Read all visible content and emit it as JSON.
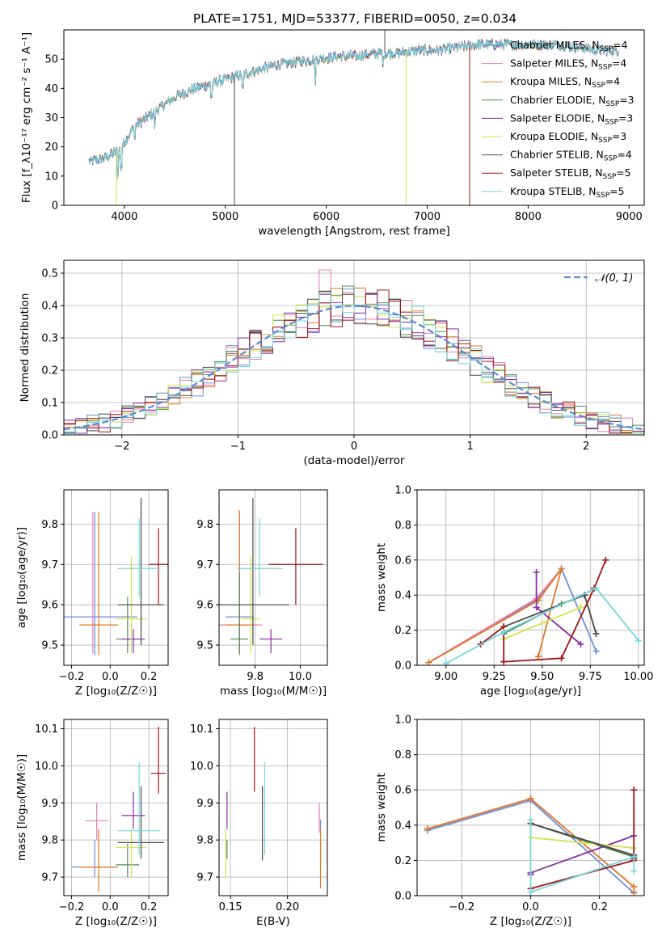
{
  "colors": {
    "chabrier_miles": "#6a8fd8",
    "salpeter_miles": "#e77fb6",
    "kroupa_miles": "#e07a2c",
    "chabrier_elodie": "#4f8a53",
    "salpeter_elodie": "#8c2aa6",
    "kroupa_elodie": "#d0e44a",
    "chabrier_stelib": "#4a4a4a",
    "salpeter_stelib": "#a11414",
    "kroupa_stelib": "#77d6dc",
    "normal": "#5b8ad9"
  },
  "chart_data": [
    {
      "id": "spectrum",
      "type": "line",
      "title": "PLATE=1751, MJD=53377, FIBERID=0050, z=0.034",
      "xlabel": "wavelength [Angstrom, rest frame]",
      "ylabel": "Flux [f_λ10⁻¹⁷ erg cm⁻² s⁻¹ A⁻¹]",
      "xlim": [
        3400,
        9150
      ],
      "ylim": [
        0,
        60
      ],
      "xticks": [
        "4000",
        "5000",
        "6000",
        "7000",
        "8000",
        "9000"
      ],
      "yticks": [
        "0",
        "10",
        "20",
        "30",
        "40",
        "50"
      ],
      "legend": {
        "placement": "upper right",
        "entries": [
          {
            "name": "Chabrier MILES, N",
            "sub": "SSP",
            "tail": "=4",
            "color": "chabrier_miles"
          },
          {
            "name": "Salpeter MILES, N",
            "sub": "SSP",
            "tail": "=4",
            "color": "salpeter_miles"
          },
          {
            "name": "Kroupa MILES, N",
            "sub": "SSP",
            "tail": "=4",
            "color": "kroupa_miles"
          },
          {
            "name": "Chabrier ELODIE, N",
            "sub": "SSP",
            "tail": "=3",
            "color": "chabrier_elodie"
          },
          {
            "name": "Salpeter ELODIE, N",
            "sub": "SSP",
            "tail": "=3",
            "color": "salpeter_elodie"
          },
          {
            "name": "Kroupa ELODIE, N",
            "sub": "SSP",
            "tail": "=3",
            "color": "kroupa_elodie"
          },
          {
            "name": "Chabrier STELIB, N",
            "sub": "SSP",
            "tail": "=4",
            "color": "chabrier_stelib"
          },
          {
            "name": "Salpeter STELIB, N",
            "sub": "SSP",
            "tail": "=5",
            "color": "salpeter_stelib"
          },
          {
            "name": "Kroupa STELIB, N",
            "sub": "SSP",
            "tail": "=5",
            "color": "kroupa_stelib"
          }
        ]
      },
      "continuum": [
        [
          3650,
          15
        ],
        [
          3800,
          16
        ],
        [
          3950,
          19
        ],
        [
          4100,
          27
        ],
        [
          4300,
          32
        ],
        [
          4500,
          37
        ],
        [
          4700,
          40
        ],
        [
          4900,
          42
        ],
        [
          5100,
          44
        ],
        [
          5300,
          46
        ],
        [
          5500,
          48
        ],
        [
          5700,
          49
        ],
        [
          5900,
          50
        ],
        [
          6100,
          51
        ],
        [
          6300,
          51
        ],
        [
          6500,
          52
        ],
        [
          6700,
          52
        ],
        [
          6900,
          53
        ],
        [
          7100,
          53
        ],
        [
          7300,
          54
        ],
        [
          7500,
          55
        ],
        [
          7700,
          55
        ],
        [
          7900,
          55
        ],
        [
          8100,
          55
        ],
        [
          8300,
          55
        ],
        [
          8500,
          54
        ],
        [
          8700,
          53
        ],
        [
          8900,
          53
        ]
      ],
      "features": [
        {
          "series": "chabrier_stelib",
          "x": 5090,
          "y": 0
        },
        {
          "series": "kroupa_elodie",
          "x": 3920,
          "y": 0
        },
        {
          "series": "kroupa_elodie",
          "x": 6790,
          "y": 0
        },
        {
          "series": "salpeter_stelib",
          "x": 7420,
          "y": 0
        },
        {
          "series": "chabrier_stelib",
          "x": 6580,
          "y": 62
        }
      ]
    },
    {
      "id": "residuals",
      "type": "line",
      "xlabel": "(data-model)/error",
      "ylabel": "Normed distribution",
      "xlim": [
        -2.5,
        2.5
      ],
      "ylim": [
        0,
        0.54
      ],
      "xticks": [
        "−2",
        "−1",
        "0",
        "1",
        "2"
      ],
      "yticks": [
        "0.0",
        "0.1",
        "0.2",
        "0.3",
        "0.4",
        "0.5"
      ],
      "legend": {
        "placement": "upper right",
        "entries": [
          {
            "name": "𝒩(0, 1)",
            "color": "normal",
            "style": "dashed"
          }
        ]
      },
      "bin_width": 0.1,
      "note_series": "step histograms for the nine models, approximately following N(0,1)"
    },
    {
      "id": "z_age",
      "type": "scatter",
      "xlabel": "Z [log₁₀(Z/Z☉)]",
      "ylabel": "age  [log₁₀(age/yr)]",
      "xlim": [
        -0.24,
        0.3
      ],
      "ylim": [
        9.45,
        9.885
      ],
      "xticks": [
        "−0.2",
        "0.0",
        "0.2"
      ],
      "yticks": [
        "9.5",
        "9.6",
        "9.7",
        "9.8"
      ],
      "points": [
        {
          "s": "chabrier_miles",
          "x": -0.08,
          "y": 9.57,
          "xerr": 0.22,
          "ylo": 9.475,
          "yhi": 9.83
        },
        {
          "s": "salpeter_miles",
          "x": -0.09,
          "y": 9.55,
          "xerr": 0.03,
          "ylo": 9.48,
          "yhi": 9.83
        },
        {
          "s": "kroupa_miles",
          "x": -0.06,
          "y": 9.55,
          "xerr": 0.1,
          "ylo": 9.475,
          "yhi": 9.83
        },
        {
          "s": "chabrier_elodie",
          "x": 0.09,
          "y": 9.515,
          "xerr": 0.06,
          "ylo": 9.48,
          "yhi": 9.62
        },
        {
          "s": "salpeter_elodie",
          "x": 0.12,
          "y": 9.515,
          "xerr": 0.06,
          "ylo": 9.48,
          "yhi": 9.54
        },
        {
          "s": "kroupa_elodie",
          "x": 0.11,
          "y": 9.565,
          "xerr": 0.08,
          "ylo": 9.48,
          "yhi": 9.72
        },
        {
          "s": "chabrier_stelib",
          "x": 0.16,
          "y": 9.6,
          "xerr": 0.12,
          "ylo": 9.5,
          "yhi": 9.865
        },
        {
          "s": "salpeter_stelib",
          "x": 0.25,
          "y": 9.7,
          "xerr": 0.05,
          "ylo": 9.6,
          "yhi": 9.79
        },
        {
          "s": "kroupa_stelib",
          "x": 0.15,
          "y": 9.69,
          "xerr": 0.11,
          "ylo": 9.62,
          "yhi": 9.815
        }
      ]
    },
    {
      "id": "mass_age",
      "type": "scatter",
      "xlabel": "mass [log₁₀(M/M☉)]",
      "ylabel": "",
      "xlim": [
        9.64,
        10.12
      ],
      "ylim": [
        9.45,
        9.885
      ],
      "xticks": [
        "9.8",
        "10.0"
      ],
      "yticks": [
        "9.5",
        "9.6",
        "9.7",
        "9.8"
      ],
      "points": [
        {
          "s": "chabrier_miles",
          "x": 9.73,
          "y": 9.57,
          "xerr": 0.06,
          "ylo": 9.475,
          "yhi": 9.83
        },
        {
          "s": "salpeter_miles",
          "x": 9.73,
          "y": 9.55,
          "xerr": 0.1,
          "ylo": 9.48,
          "yhi": 9.83
        },
        {
          "s": "kroupa_miles",
          "x": 9.73,
          "y": 9.55,
          "xerr": 0.06,
          "ylo": 9.475,
          "yhi": 9.835
        },
        {
          "s": "chabrier_elodie",
          "x": 9.73,
          "y": 9.515,
          "xerr": 0.04,
          "ylo": 9.48,
          "yhi": 9.68
        },
        {
          "s": "salpeter_elodie",
          "x": 9.87,
          "y": 9.515,
          "xerr": 0.05,
          "ylo": 9.48,
          "yhi": 9.54
        },
        {
          "s": "kroupa_elodie",
          "x": 9.78,
          "y": 9.565,
          "xerr": 0.04,
          "ylo": 9.48,
          "yhi": 9.72
        },
        {
          "s": "chabrier_stelib",
          "x": 9.79,
          "y": 9.6,
          "xerr": 0.16,
          "ylo": 9.5,
          "yhi": 9.865
        },
        {
          "s": "salpeter_stelib",
          "x": 9.98,
          "y": 9.7,
          "xerr": 0.12,
          "ylo": 9.6,
          "yhi": 9.79
        },
        {
          "s": "kroupa_stelib",
          "x": 9.82,
          "y": 9.69,
          "xerr": 0.1,
          "ylo": 9.62,
          "yhi": 9.815
        }
      ]
    },
    {
      "id": "age_weight",
      "type": "line",
      "xlabel": "age  [log₁₀(age/yr)]",
      "ylabel": "mass weight",
      "xlim": [
        8.85,
        10.03
      ],
      "ylim": [
        0,
        1
      ],
      "xticks": [
        "9.00",
        "9.25",
        "9.50",
        "9.75",
        "10.00"
      ],
      "yticks": [
        "0.0",
        "0.2",
        "0.4",
        "0.6",
        "0.8",
        "1.0"
      ],
      "series": [
        {
          "s": "chabrier_miles",
          "x": [
            8.91,
            9.47,
            9.6,
            9.78
          ],
          "y": [
            0.015,
            0.37,
            0.55,
            0.08
          ]
        },
        {
          "s": "salpeter_miles",
          "x": [
            8.91,
            9.47,
            9.6
          ],
          "y": [
            0.015,
            0.38,
            0.55
          ]
        },
        {
          "s": "kroupa_miles",
          "x": [
            8.91,
            9.48,
            9.6,
            9.48,
            9.48
          ],
          "y": [
            0.015,
            0.37,
            0.55,
            0.05,
            0.05
          ]
        },
        {
          "s": "chabrier_elodie",
          "x": [
            9.3,
            9.6,
            9.72
          ],
          "y": [
            0.18,
            0.35,
            0.4
          ]
        },
        {
          "s": "salpeter_elodie",
          "x": [
            9.47,
            9.47,
            9.7
          ],
          "y": [
            0.53,
            0.33,
            0.12
          ]
        },
        {
          "s": "kroupa_elodie",
          "x": [
            9.3,
            9.7
          ],
          "y": [
            0.15,
            0.33
          ]
        },
        {
          "s": "chabrier_stelib",
          "x": [
            9.3,
            9.72,
            9.78
          ],
          "y": [
            0.22,
            0.4,
            0.18
          ]
        },
        {
          "s": "salpeter_stelib",
          "x": [
            9.18,
            9.3,
            9.3,
            9.6,
            9.77,
            9.83
          ],
          "y": [
            0.12,
            0.22,
            0.02,
            0.04,
            0.44,
            0.6
          ]
        },
        {
          "s": "kroupa_stelib",
          "x": [
            9.0,
            9.3,
            9.78,
            10.0
          ],
          "y": [
            0.01,
            0.19,
            0.44,
            0.14
          ]
        }
      ]
    },
    {
      "id": "z_mass",
      "type": "scatter",
      "xlabel": "Z [log₁₀(Z/Z☉)]",
      "ylabel": "mass [log₁₀(M/M☉)]",
      "xlim": [
        -0.24,
        0.3
      ],
      "ylim": [
        9.65,
        10.125
      ],
      "xticks": [
        "−0.2",
        "0.0",
        "0.2"
      ],
      "yticks": [
        "9.7",
        "9.8",
        "9.9",
        "10.0",
        "10.1"
      ],
      "points": [
        {
          "s": "chabrier_miles",
          "x": -0.08,
          "y": 9.727,
          "xerr": 0.12,
          "ylo": 9.7,
          "yhi": 9.8
        },
        {
          "s": "salpeter_miles",
          "x": -0.07,
          "y": 9.852,
          "xerr": 0.06,
          "ylo": 9.8,
          "yhi": 9.9
        },
        {
          "s": "kroupa_miles",
          "x": -0.06,
          "y": 9.727,
          "xerr": 0.1,
          "ylo": 9.66,
          "yhi": 9.83
        },
        {
          "s": "chabrier_elodie",
          "x": 0.09,
          "y": 9.733,
          "xerr": 0.06,
          "ylo": 9.7,
          "yhi": 9.79
        },
        {
          "s": "salpeter_elodie",
          "x": 0.12,
          "y": 9.866,
          "xerr": 0.06,
          "ylo": 9.83,
          "yhi": 9.93
        },
        {
          "s": "kroupa_elodie",
          "x": 0.11,
          "y": 9.78,
          "xerr": 0.08,
          "ylo": 9.7,
          "yhi": 9.83
        },
        {
          "s": "chabrier_stelib",
          "x": 0.16,
          "y": 9.793,
          "xerr": 0.12,
          "ylo": 9.75,
          "yhi": 9.945
        },
        {
          "s": "salpeter_stelib",
          "x": 0.25,
          "y": 9.98,
          "xerr": 0.04,
          "ylo": 9.925,
          "yhi": 10.105
        },
        {
          "s": "kroupa_stelib",
          "x": 0.15,
          "y": 9.825,
          "xerr": 0.11,
          "ylo": 9.76,
          "yhi": 10.01
        }
      ]
    },
    {
      "id": "ebv_mass",
      "type": "scatter",
      "xlabel": "E(B-V)",
      "ylabel": "",
      "xlim": [
        0.14,
        0.235
      ],
      "ylim": [
        9.65,
        10.125
      ],
      "xticks": [
        "0.15",
        "0.20"
      ],
      "yticks": [
        "9.7",
        "9.8",
        "9.9",
        "10.0",
        "10.1"
      ],
      "points": [
        {
          "s": "chabrier_miles",
          "x": 0.229,
          "ylo": 9.72,
          "yhi": 9.855
        },
        {
          "s": "salpeter_miles",
          "x": 0.228,
          "ylo": 9.82,
          "yhi": 9.9
        },
        {
          "s": "kroupa_miles",
          "x": 0.229,
          "ylo": 9.67,
          "yhi": 9.83
        },
        {
          "s": "chabrier_elodie",
          "x": 0.147,
          "ylo": 9.75,
          "yhi": 9.8
        },
        {
          "s": "salpeter_elodie",
          "x": 0.147,
          "ylo": 9.83,
          "yhi": 9.93
        },
        {
          "s": "kroupa_elodie",
          "x": 0.146,
          "ylo": 9.7,
          "yhi": 9.83
        },
        {
          "s": "chabrier_stelib",
          "x": 0.178,
          "ylo": 9.745,
          "yhi": 9.945
        },
        {
          "s": "salpeter_stelib",
          "x": 0.171,
          "ylo": 9.93,
          "yhi": 10.105
        },
        {
          "s": "kroupa_stelib",
          "x": 0.18,
          "ylo": 9.76,
          "yhi": 10.01
        }
      ]
    },
    {
      "id": "z_weight",
      "type": "line",
      "xlabel": "Z [log₁₀(Z/Z☉)]",
      "ylabel": "mass weight",
      "xlim": [
        -0.33,
        0.33
      ],
      "ylim": [
        0,
        1
      ],
      "xticks": [
        "−0.2",
        "0.0",
        "0.2"
      ],
      "yticks": [
        "0.0",
        "0.2",
        "0.4",
        "0.6",
        "0.8",
        "1.0"
      ],
      "series": [
        {
          "s": "chabrier_miles",
          "x": [
            -0.3,
            0.0,
            0.3
          ],
          "y": [
            0.37,
            0.54,
            0.015
          ]
        },
        {
          "s": "salpeter_miles",
          "x": [
            -0.3,
            0.0,
            0.3
          ],
          "y": [
            0.38,
            0.55,
            0.05
          ]
        },
        {
          "s": "kroupa_miles",
          "x": [
            -0.3,
            0.0,
            0.3,
            0.3
          ],
          "y": [
            0.38,
            0.55,
            0.05,
            0.02
          ]
        },
        {
          "s": "chabrier_elodie",
          "x": [
            0.0,
            0.3
          ],
          "y": [
            0.41,
            0.22
          ]
        },
        {
          "s": "salpeter_elodie",
          "x": [
            0.0,
            0.0,
            0.3
          ],
          "y": [
            0.12,
            0.13,
            0.34
          ]
        },
        {
          "s": "kroupa_elodie",
          "x": [
            0.0,
            0.3
          ],
          "y": [
            0.33,
            0.27
          ]
        },
        {
          "s": "chabrier_stelib",
          "x": [
            0.0,
            0.3
          ],
          "y": [
            0.41,
            0.23
          ]
        },
        {
          "s": "salpeter_stelib",
          "x": [
            0.0,
            0.3,
            0.3,
            0.3
          ],
          "y": [
            0.04,
            0.2,
            0.6,
            0.21
          ]
        },
        {
          "s": "kroupa_stelib",
          "x": [
            0.0,
            0.0,
            0.3,
            0.3
          ],
          "y": [
            0.43,
            0.02,
            0.22,
            0.14
          ]
        }
      ]
    }
  ]
}
